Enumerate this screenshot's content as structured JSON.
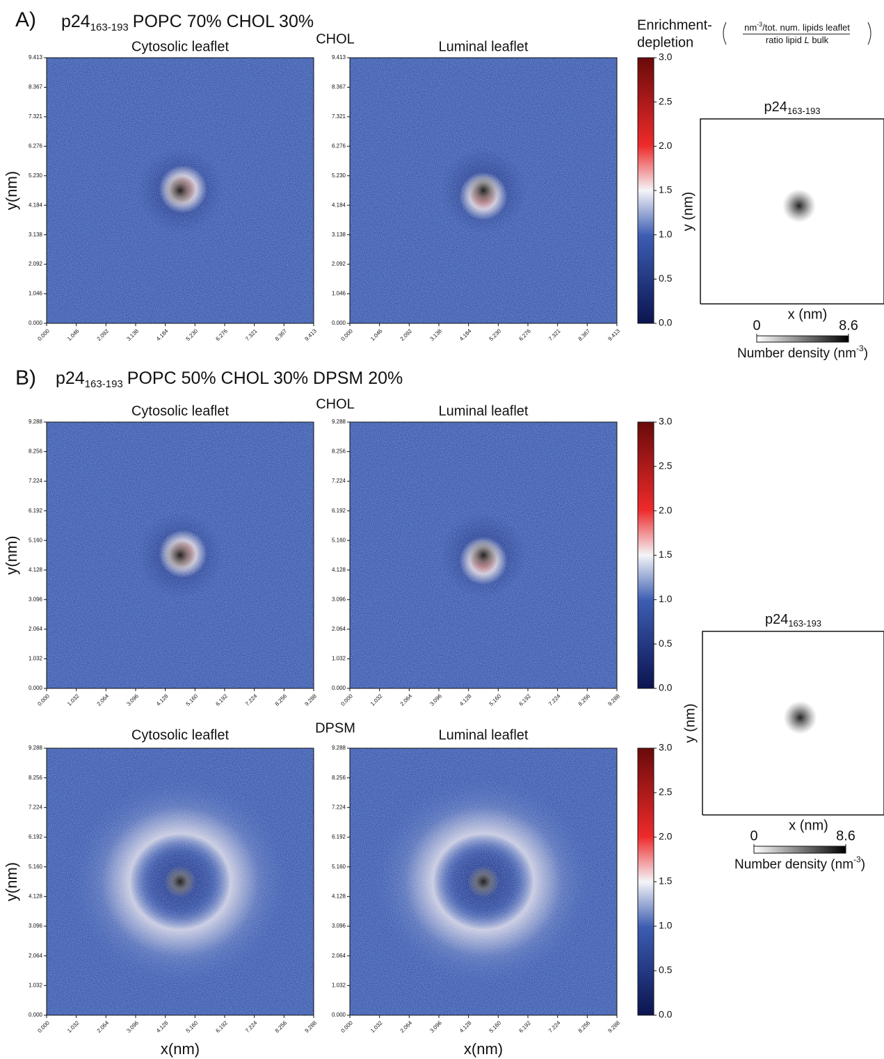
{
  "panels": [
    {
      "label": "A)",
      "protein": "p24",
      "subscript": "163-193",
      "composition": "POPC 70% CHOL 30%"
    },
    {
      "label": "B)",
      "protein": "p24",
      "subscript": "163-193",
      "composition": "POPC 50% CHOL 30% DPSM 20%"
    }
  ],
  "colorbar_label": {
    "lines": [
      "Enrichment-",
      "depletion"
    ],
    "numerator": [
      "nm",
      "-3",
      "/tot. num. lipids leaflet"
    ],
    "denominator": [
      "ratio lipid ",
      "L",
      " bulk"
    ]
  },
  "chart_data": [
    {
      "type": "heatmap",
      "lipid": "CHOL",
      "subplot_titles": [
        "Cytosolic leaflet",
        "Luminal leaflet"
      ],
      "ylabel": "y(nm)",
      "xlim": [
        0,
        9.413
      ],
      "ylim": [
        0,
        9.413
      ],
      "xticks": [
        {
          "value": 0,
          "label": "0.000"
        },
        1.046,
        2.092,
        3.138,
        4.184,
        {
          "value": 5.23,
          "label": "5.230"
        },
        6.276,
        7.321,
        8.367,
        9.413
      ],
      "yticks": [
        {
          "value": 0,
          "label": "0.000"
        },
        1.046,
        2.092,
        3.138,
        4.184,
        {
          "value": 5.23,
          "label": "5.230"
        },
        6.276,
        7.321,
        8.367,
        9.413
      ],
      "clim": [
        0,
        3
      ],
      "cticks": [
        {
          "value": 0,
          "label": "0.0"
        },
        0.5,
        {
          "value": 1,
          "label": "1.0"
        },
        1.5,
        {
          "value": 2,
          "label": "2.0"
        },
        2.5,
        {
          "value": 3,
          "label": "3.0"
        }
      ]
    },
    {
      "type": "density",
      "title": "p24",
      "title_subscript": "163-193",
      "xlabel": "x (nm)",
      "ylabel": "y (nm)",
      "clim": [
        0,
        8.6
      ],
      "cticks": [
        0,
        8.6
      ],
      "colorbar_label": [
        "Number density (nm",
        "-3",
        ")"
      ]
    },
    {
      "type": "heatmap",
      "lipid": "CHOL",
      "subplot_titles": [
        "Cytosolic leaflet",
        "Luminal leaflet"
      ],
      "ylabel": "y(nm)",
      "xlim": [
        0,
        9.288
      ],
      "ylim": [
        0,
        9.288
      ],
      "xticks": [
        {
          "value": 0,
          "label": "0.000"
        },
        1.032,
        2.064,
        3.096,
        4.128,
        {
          "value": 5.16,
          "label": "5.160"
        },
        6.192,
        7.224,
        8.256,
        9.288
      ],
      "yticks": [
        {
          "value": 0,
          "label": "0.000"
        },
        1.032,
        2.064,
        3.096,
        4.128,
        {
          "value": 5.16,
          "label": "5.160"
        },
        6.192,
        7.224,
        8.256,
        9.288
      ],
      "clim": [
        0,
        3
      ],
      "cticks": [
        {
          "value": 0,
          "label": "0.0"
        },
        0.5,
        {
          "value": 1,
          "label": "1.0"
        },
        1.5,
        {
          "value": 2,
          "label": "2.0"
        },
        2.5,
        {
          "value": 3,
          "label": "3.0"
        }
      ]
    },
    {
      "type": "heatmap",
      "lipid": "DPSM",
      "subplot_titles": [
        "Cytosolic leaflet",
        "Luminal leaflet"
      ],
      "ylabel": "y(nm)",
      "xlabel": "x(nm)",
      "xlim": [
        0,
        9.288
      ],
      "ylim": [
        0,
        9.288
      ],
      "xticks": [
        {
          "value": 0,
          "label": "0.000"
        },
        1.032,
        2.064,
        3.096,
        4.128,
        {
          "value": 5.16,
          "label": "5.160"
        },
        6.192,
        7.224,
        8.256,
        9.288
      ],
      "yticks": [
        {
          "value": 0,
          "label": "0.000"
        },
        1.032,
        2.064,
        3.096,
        4.128,
        {
          "value": 5.16,
          "label": "5.160"
        },
        6.192,
        7.224,
        8.256,
        9.288
      ],
      "clim": [
        0,
        3
      ],
      "cticks": [
        {
          "value": 0,
          "label": "0.0"
        },
        0.5,
        {
          "value": 1,
          "label": "1.0"
        },
        1.5,
        {
          "value": 2,
          "label": "2.0"
        },
        2.5,
        {
          "value": 3,
          "label": "3.0"
        }
      ]
    },
    {
      "type": "density",
      "title": "p24",
      "title_subscript": "163-193",
      "xlabel": "x (nm)",
      "ylabel": "y (nm)",
      "clim": [
        0,
        8.6
      ],
      "cticks": [
        0,
        8.6
      ],
      "colorbar_label": [
        "Number density (nm",
        "-3",
        ")"
      ]
    }
  ]
}
